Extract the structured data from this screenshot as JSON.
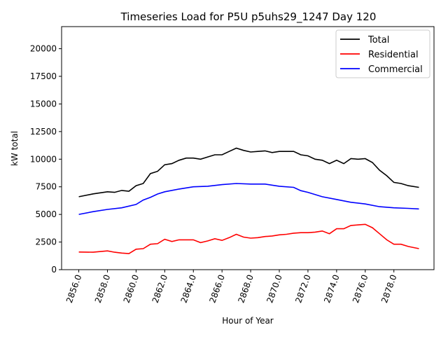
{
  "chart_data": {
    "type": "line",
    "title": "Timeseries Load for P5U p5uhs29_1247  Day 120",
    "xlabel": "Hour of Year",
    "ylabel": "kW total",
    "xlim": [
      2854.8,
      2880.8
    ],
    "ylim": [
      0,
      22000
    ],
    "xticks": [
      2856,
      2858,
      2860,
      2862,
      2864,
      2866,
      2868,
      2870,
      2872,
      2874,
      2876,
      2878
    ],
    "xtick_labels": [
      "2856.0",
      "2858.0",
      "2860.0",
      "2862.0",
      "2864.0",
      "2866.0",
      "2868.0",
      "2870.0",
      "2872.0",
      "2874.0",
      "2876.0",
      "2878.0"
    ],
    "yticks": [
      0,
      2500,
      5000,
      7500,
      10000,
      12500,
      15000,
      17500,
      20000
    ],
    "ytick_labels": [
      "0",
      "2500",
      "5000",
      "7500",
      "10000",
      "12500",
      "15000",
      "17500",
      "20000"
    ],
    "grid": false,
    "legend_position": "top-right",
    "series": [
      {
        "name": "Total",
        "color": "#000000",
        "x": [
          2856,
          2857,
          2858,
          2858.5,
          2859,
          2859.5,
          2860,
          2860.5,
          2861,
          2861.5,
          2862,
          2862.5,
          2863,
          2863.5,
          2864,
          2864.5,
          2865,
          2865.5,
          2866,
          2866.5,
          2867,
          2867.5,
          2868,
          2868.5,
          2869,
          2869.5,
          2870,
          2870.5,
          2871,
          2871.5,
          2872,
          2872.5,
          2873,
          2873.5,
          2874,
          2874.5,
          2875,
          2875.5,
          2876,
          2876.5,
          2877,
          2877.5,
          2878,
          2878.5,
          2879,
          2879.75
        ],
        "y": [
          6600,
          6860,
          7050,
          7000,
          7170,
          7100,
          7600,
          7800,
          8700,
          8900,
          9500,
          9600,
          9900,
          10100,
          10100,
          10000,
          10200,
          10400,
          10400,
          10700,
          11000,
          10800,
          10650,
          10700,
          10750,
          10600,
          10700,
          10700,
          10700,
          10400,
          10300,
          10000,
          9900,
          9600,
          9900,
          9600,
          10050,
          10000,
          10050,
          9700,
          9000,
          8500,
          7900,
          7800,
          7600,
          7450
        ]
      },
      {
        "name": "Residential",
        "color": "#ff0000",
        "x": [
          2856,
          2857,
          2858,
          2858.5,
          2859,
          2859.5,
          2860,
          2860.5,
          2861,
          2861.5,
          2862,
          2862.5,
          2863,
          2864,
          2864.5,
          2865,
          2865.5,
          2866,
          2866.5,
          2867,
          2867.5,
          2868,
          2868.5,
          2869,
          2869.5,
          2870,
          2870.5,
          2871,
          2871.5,
          2872,
          2872.5,
          2873,
          2873.5,
          2874,
          2874.5,
          2875,
          2875.5,
          2876,
          2876.5,
          2877,
          2877.5,
          2878,
          2878.5,
          2879,
          2879.75
        ],
        "y": [
          1600,
          1580,
          1700,
          1580,
          1500,
          1450,
          1850,
          1900,
          2300,
          2350,
          2750,
          2550,
          2700,
          2700,
          2450,
          2600,
          2800,
          2650,
          2900,
          3200,
          2950,
          2850,
          2900,
          3000,
          3050,
          3150,
          3200,
          3300,
          3350,
          3350,
          3400,
          3500,
          3250,
          3700,
          3700,
          4000,
          4050,
          4100,
          3800,
          3250,
          2700,
          2300,
          2300,
          2100,
          1900
        ]
      },
      {
        "name": "Commercial",
        "color": "#0000ff",
        "x": [
          2856,
          2857,
          2858,
          2859,
          2860,
          2860.5,
          2861,
          2861.5,
          2862,
          2863,
          2864,
          2865,
          2866,
          2867,
          2868,
          2869,
          2870,
          2871,
          2871.5,
          2872,
          2873,
          2874,
          2875,
          2876,
          2877,
          2878,
          2879,
          2879.75
        ],
        "y": [
          5000,
          5250,
          5450,
          5600,
          5900,
          6300,
          6550,
          6850,
          7050,
          7300,
          7500,
          7550,
          7700,
          7800,
          7750,
          7750,
          7550,
          7450,
          7150,
          7000,
          6600,
          6350,
          6100,
          5950,
          5700,
          5600,
          5550,
          5500
        ]
      }
    ]
  }
}
